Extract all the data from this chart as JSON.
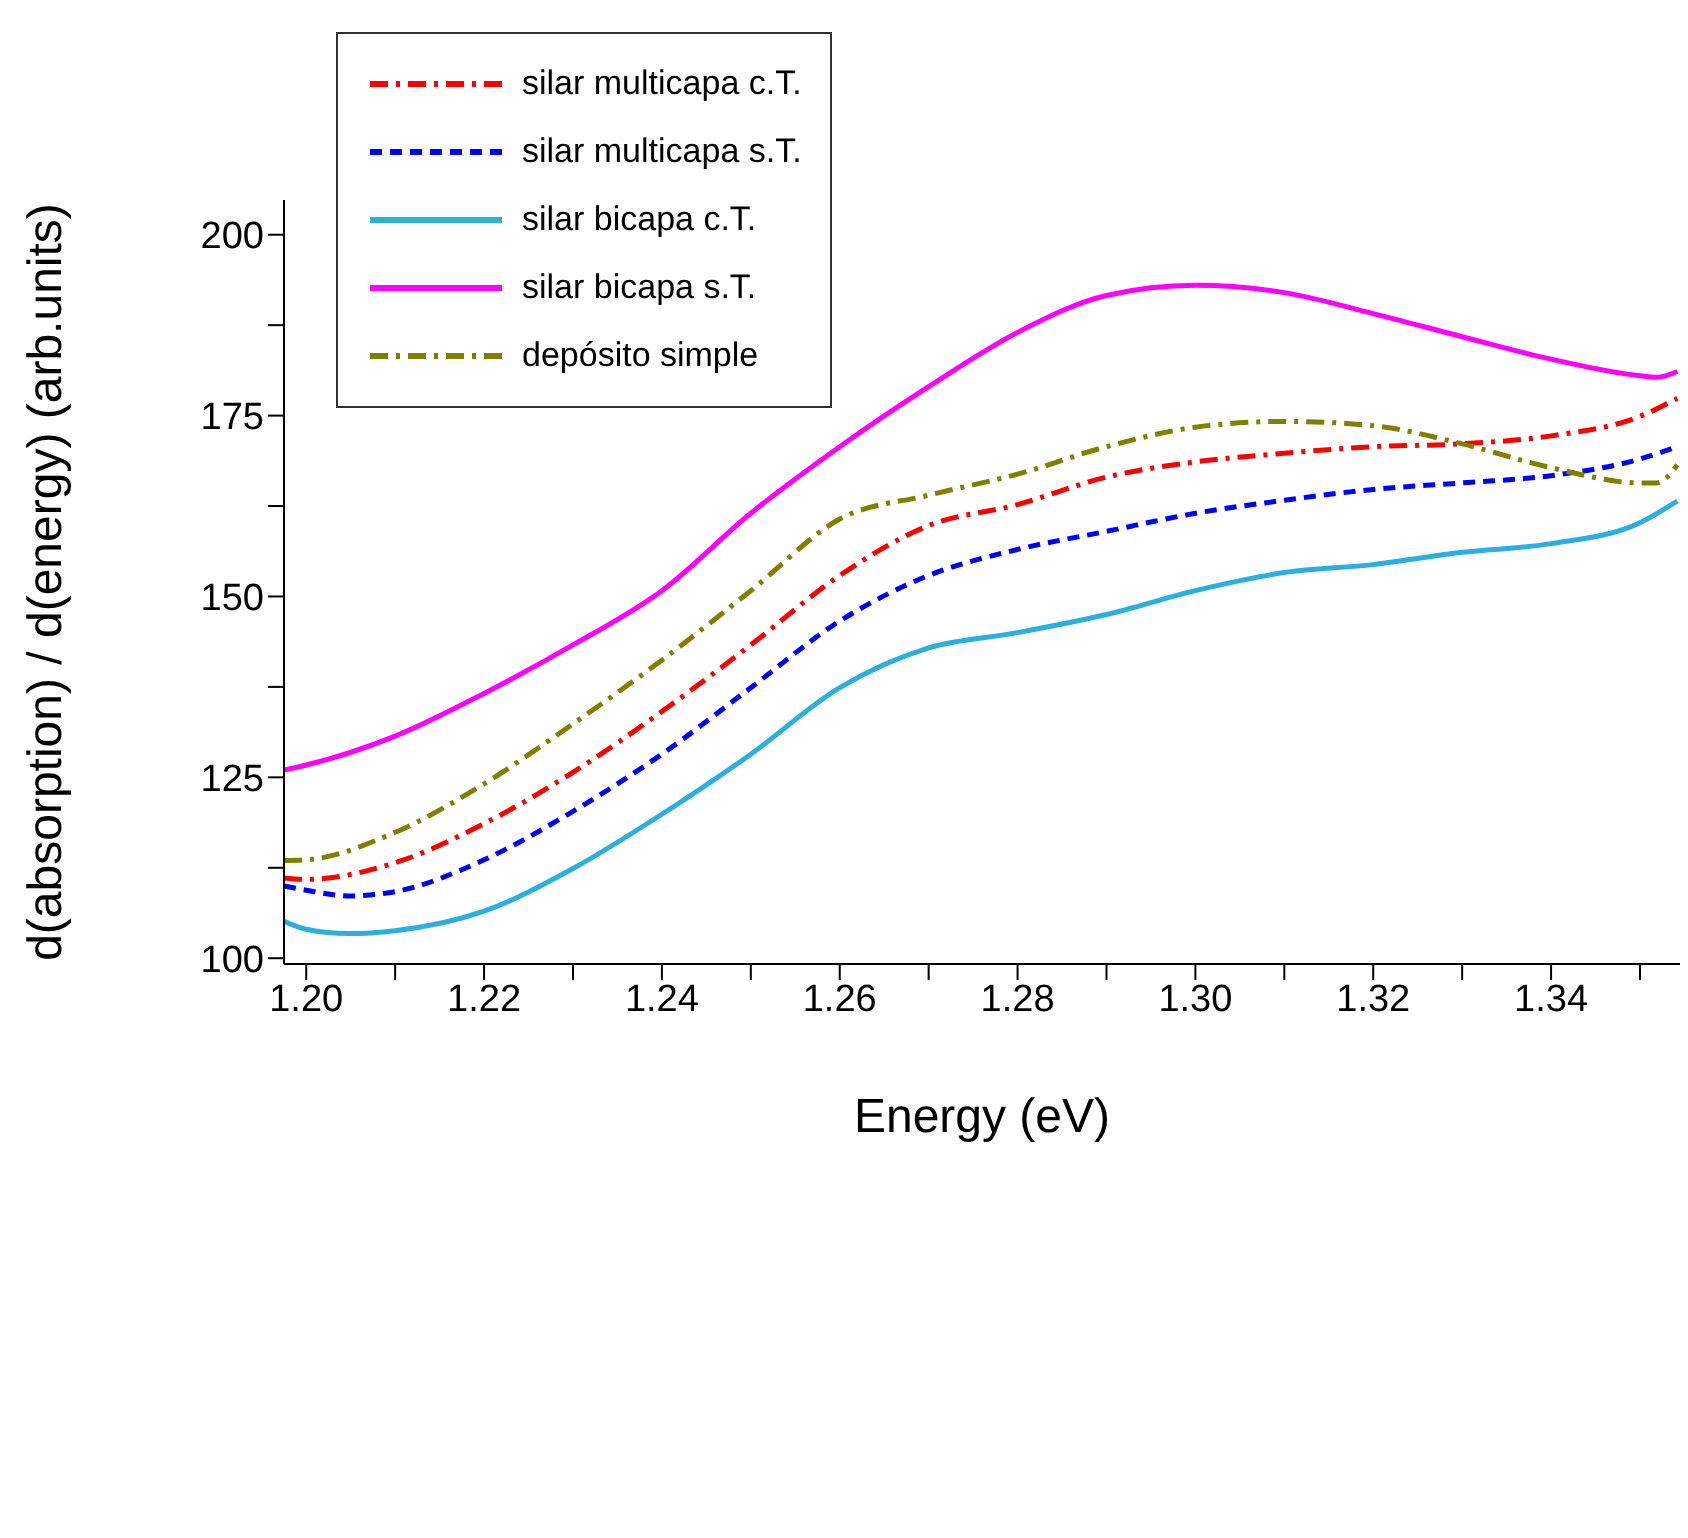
{
  "chart_data": {
    "type": "line",
    "xlabel": "Energy (eV)",
    "ylabel": "d(absorption) / d(energy) (arb.units)",
    "xlim": [
      1.1975,
      1.3545
    ],
    "ylim": [
      99.2,
      204.8
    ],
    "xticks": [
      {
        "value": 1.2,
        "label": "1.20"
      },
      {
        "value": 1.21,
        "label": null
      },
      {
        "value": 1.22,
        "label": "1.22"
      },
      {
        "value": 1.23,
        "label": null
      },
      {
        "value": 1.24,
        "label": "1.24"
      },
      {
        "value": 1.25,
        "label": null
      },
      {
        "value": 1.26,
        "label": "1.26"
      },
      {
        "value": 1.27,
        "label": null
      },
      {
        "value": 1.28,
        "label": "1.28"
      },
      {
        "value": 1.29,
        "label": null
      },
      {
        "value": 1.3,
        "label": "1.30"
      },
      {
        "value": 1.31,
        "label": null
      },
      {
        "value": 1.32,
        "label": "1.32"
      },
      {
        "value": 1.33,
        "label": null
      },
      {
        "value": 1.34,
        "label": "1.34"
      },
      {
        "value": 1.35,
        "label": null
      }
    ],
    "yticks": [
      100,
      {
        "value": 112.5,
        "label": null
      },
      125,
      {
        "value": 137.5,
        "label": null
      },
      150,
      {
        "value": 162.5,
        "label": null
      },
      175,
      {
        "value": 187.5,
        "label": null
      },
      200
    ],
    "grid": false,
    "legend": "top left",
    "marker": "none",
    "series": [
      {
        "name": "silar multicapa c.T.",
        "color": "#ff0000",
        "line_style": "dashdot",
        "x": [
          1.1975,
          1.2,
          1.21,
          1.22,
          1.23,
          1.24,
          1.25,
          1.26,
          1.27,
          1.28,
          1.29,
          1.3,
          1.31,
          1.32,
          1.33,
          1.34,
          1.35,
          1.3542
        ],
        "values": [
          111.1,
          110.9,
          113.2,
          118.6,
          125.7,
          134.1,
          143.3,
          152.9,
          159.8,
          162.7,
          166.5,
          168.6,
          169.8,
          170.7,
          171.1,
          172.2,
          174.9,
          177.4
        ]
      },
      {
        "name": "silar multicapa s.T.",
        "color": "#0000ff",
        "line_style": "dashed",
        "x": [
          1.1975,
          1.2,
          1.2048,
          1.21,
          1.22,
          1.23,
          1.24,
          1.25,
          1.26,
          1.27,
          1.28,
          1.29,
          1.3,
          1.31,
          1.32,
          1.33,
          1.34,
          1.35,
          1.3542
        ],
        "values": [
          110.0,
          109.4,
          108.6,
          109.2,
          113.6,
          120.3,
          128.2,
          137.4,
          146.6,
          152.9,
          156.5,
          159.0,
          161.5,
          163.3,
          164.8,
          165.7,
          166.7,
          169.0,
          170.7
        ]
      },
      {
        "name": "silar bicapa c.T.",
        "color": "#29b0e0",
        "line_style": "solid",
        "x": [
          1.1975,
          1.2,
          1.2048,
          1.21,
          1.22,
          1.23,
          1.24,
          1.25,
          1.26,
          1.27,
          1.28,
          1.29,
          1.3,
          1.31,
          1.32,
          1.33,
          1.34,
          1.35,
          1.3542
        ],
        "values": [
          105.1,
          104.0,
          103.4,
          103.8,
          106.5,
          112.4,
          119.9,
          128.2,
          137.4,
          142.9,
          145.0,
          147.5,
          150.8,
          153.3,
          154.4,
          156.1,
          157.3,
          160.2,
          163.2
        ]
      },
      {
        "name": "silar bicapa s.T.",
        "color": "#ff00ff",
        "line_style": "solid",
        "x": [
          1.1975,
          1.2,
          1.21,
          1.22,
          1.23,
          1.24,
          1.25,
          1.26,
          1.27,
          1.28,
          1.29,
          1.3,
          1.31,
          1.32,
          1.33,
          1.34,
          1.35,
          1.3519,
          1.3542
        ],
        "values": [
          126.0,
          126.7,
          130.7,
          136.6,
          143.3,
          150.8,
          161.5,
          170.7,
          179.0,
          186.5,
          191.6,
          193.0,
          192.0,
          189.1,
          185.9,
          182.8,
          180.5,
          180.3,
          181.1
        ]
      },
      {
        "name": "depósito simple",
        "color": "#808000",
        "line_style": "dashdot",
        "x": [
          1.1975,
          1.2,
          1.21,
          1.22,
          1.23,
          1.24,
          1.25,
          1.26,
          1.27,
          1.28,
          1.29,
          1.3,
          1.31,
          1.32,
          1.33,
          1.34,
          1.35,
          1.3519,
          1.3542
        ],
        "values": [
          113.5,
          113.6,
          117.4,
          124.1,
          132.4,
          141.2,
          150.8,
          160.7,
          164.0,
          166.9,
          170.7,
          173.4,
          174.2,
          173.6,
          171.1,
          167.8,
          165.7,
          165.7,
          168.2
        ]
      }
    ]
  }
}
